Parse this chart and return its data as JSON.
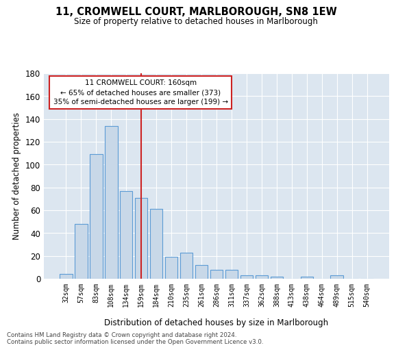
{
  "title": "11, CROMWELL COURT, MARLBOROUGH, SN8 1EW",
  "subtitle": "Size of property relative to detached houses in Marlborough",
  "xlabel": "Distribution of detached houses by size in Marlborough",
  "ylabel": "Number of detached properties",
  "bar_color": "#c8d8e8",
  "bar_edge_color": "#5b9bd5",
  "background_color": "#dce6f0",
  "grid_color": "white",
  "categories": [
    "32sqm",
    "57sqm",
    "83sqm",
    "108sqm",
    "134sqm",
    "159sqm",
    "184sqm",
    "210sqm",
    "235sqm",
    "261sqm",
    "286sqm",
    "311sqm",
    "337sqm",
    "362sqm",
    "388sqm",
    "413sqm",
    "438sqm",
    "464sqm",
    "489sqm",
    "515sqm",
    "540sqm"
  ],
  "values": [
    4,
    48,
    109,
    134,
    77,
    71,
    61,
    19,
    23,
    12,
    8,
    8,
    3,
    3,
    2,
    0,
    2,
    0,
    3,
    0,
    0
  ],
  "ylim": [
    0,
    180
  ],
  "yticks": [
    0,
    20,
    40,
    60,
    80,
    100,
    120,
    140,
    160,
    180
  ],
  "property_bin_index": 5,
  "vline_color": "#cc2222",
  "annotation_line1": "11 CROMWELL COURT: 160sqm",
  "annotation_line2": "← 65% of detached houses are smaller (373)",
  "annotation_line3": "35% of semi-detached houses are larger (199) →",
  "annotation_box_color": "white",
  "annotation_box_edge_color": "#cc2222",
  "footer_text": "Contains HM Land Registry data © Crown copyright and database right 2024.\nContains public sector information licensed under the Open Government Licence v3.0."
}
